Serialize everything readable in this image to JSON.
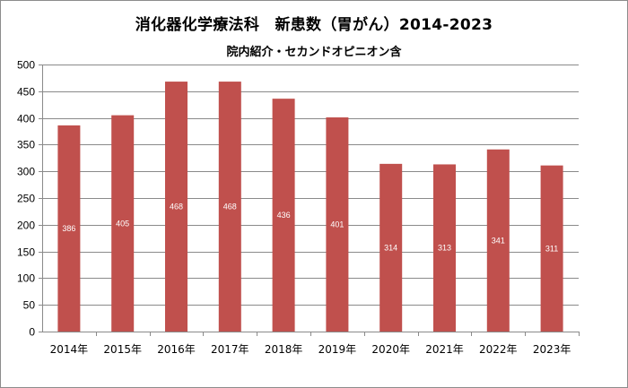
{
  "chart_data": {
    "type": "bar",
    "title": "消化器化学療法科　新患数（胃がん）2014-2023",
    "subtitle": "院内紹介・セカンドオピニオン含",
    "categories": [
      "2014年",
      "2015年",
      "2016年",
      "2017年",
      "2018年",
      "2019年",
      "2020年",
      "2021年",
      "2022年",
      "2023年"
    ],
    "values": [
      386,
      405,
      468,
      468,
      436,
      401,
      314,
      313,
      341,
      311
    ],
    "ylim": [
      0,
      500
    ],
    "yticks": [
      0,
      50,
      100,
      150,
      200,
      250,
      300,
      350,
      400,
      450,
      500
    ],
    "grid": true,
    "legend": "none",
    "bar_color": "#c0504d"
  }
}
